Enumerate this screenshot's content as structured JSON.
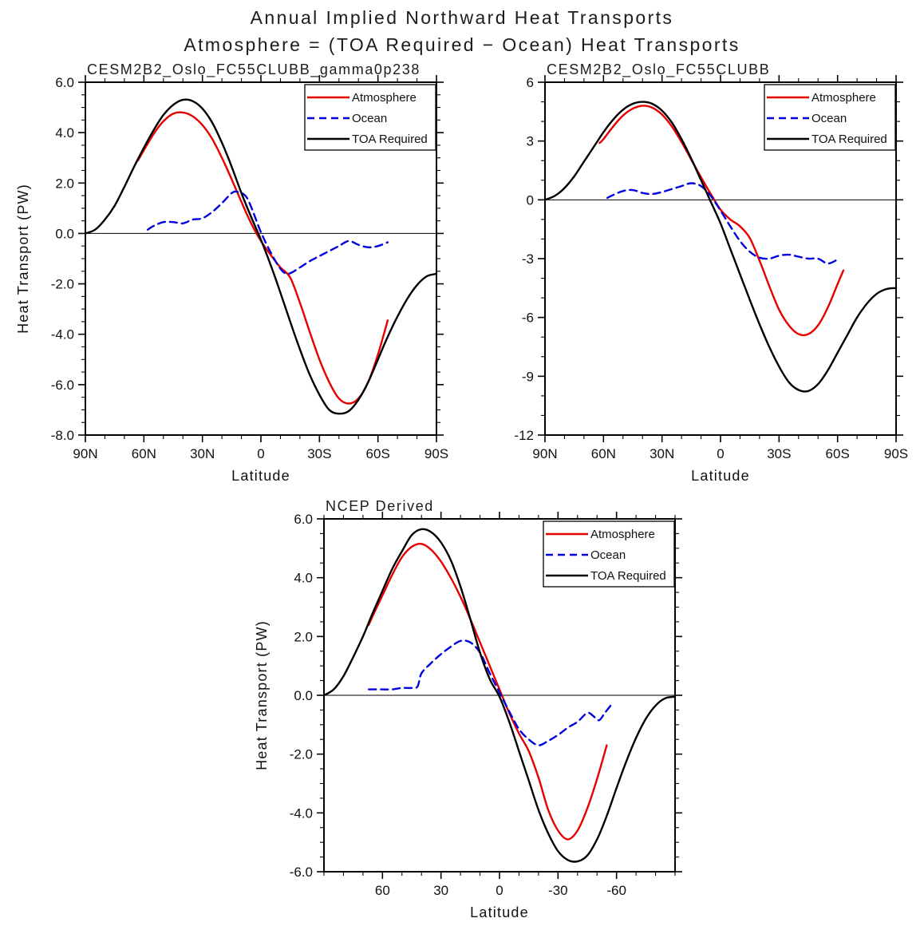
{
  "figure": {
    "title_line1": "Annual Implied Northward Heat Transports",
    "title_line2": "Atmosphere = (TOA Required − Ocean) Heat Transports"
  },
  "colors": {
    "atmosphere": "#e60000",
    "ocean": "#0000dd",
    "toa_required": "#000000",
    "frame": "#000000",
    "text": "#111111"
  },
  "chart_data": [
    {
      "id": "cesm-gamma0p238",
      "type": "line",
      "title": "CESM2B2_Oslo_FC55CLUBB_gamma0p238",
      "xlabel": "Latitude",
      "ylabel": "Heat Transport (PW)",
      "xlim": [
        90,
        -90
      ],
      "ylim": [
        -8,
        6
      ],
      "grid": false,
      "zero_line": true,
      "xticks": {
        "values": [
          90,
          60,
          30,
          0,
          -30,
          -60,
          -90
        ],
        "labels": [
          "90N",
          "60N",
          "30N",
          "0",
          "30S",
          "60S",
          "90S"
        ],
        "minor_step": 10
      },
      "yticks": {
        "values": [
          6,
          4,
          2,
          0,
          -2,
          -4,
          -6,
          -8
        ],
        "labels": [
          "6.0",
          "4.0",
          "2.0",
          "0.0",
          "-2.0",
          "-4.0",
          "-6.0",
          "-8.0"
        ],
        "minor_step": 0.5
      },
      "legend": {
        "position": "top-right",
        "entries": [
          "Atmosphere",
          "Ocean",
          "TOA Required"
        ]
      },
      "series": [
        {
          "name": "Atmosphere",
          "color_key": "atmosphere",
          "dash": "solid",
          "x": [
            63,
            60,
            55,
            50,
            45,
            40,
            35,
            30,
            25,
            20,
            15,
            10,
            5,
            0,
            -5,
            -10,
            -15,
            -20,
            -25,
            -30,
            -35,
            -40,
            -45,
            -50,
            -55,
            -60,
            -65
          ],
          "y": [
            2.9,
            3.3,
            3.95,
            4.45,
            4.75,
            4.8,
            4.65,
            4.3,
            3.75,
            3.0,
            2.15,
            1.25,
            0.4,
            -0.3,
            -0.85,
            -1.35,
            -1.75,
            -2.75,
            -3.9,
            -5.0,
            -5.9,
            -6.55,
            -6.75,
            -6.55,
            -5.9,
            -4.8,
            -3.45
          ]
        },
        {
          "name": "Ocean",
          "color_key": "ocean",
          "dash": "dashed",
          "x": [
            58,
            55,
            50,
            45,
            40,
            35,
            30,
            25,
            20,
            15,
            12,
            8,
            5,
            0,
            -5,
            -10,
            -14,
            -20,
            -25,
            -30,
            -35,
            -40,
            -45,
            -50,
            -55,
            -60,
            -65
          ],
          "y": [
            0.15,
            0.3,
            0.45,
            0.45,
            0.4,
            0.55,
            0.6,
            0.85,
            1.2,
            1.6,
            1.65,
            1.5,
            1.05,
            0.05,
            -0.75,
            -1.4,
            -1.6,
            -1.35,
            -1.1,
            -0.9,
            -0.7,
            -0.5,
            -0.3,
            -0.45,
            -0.55,
            -0.5,
            -0.35
          ]
        },
        {
          "name": "TOA Required",
          "color_key": "toa_required",
          "dash": "solid",
          "x": [
            90,
            85,
            80,
            75,
            70,
            65,
            60,
            55,
            50,
            45,
            40,
            35,
            30,
            25,
            20,
            15,
            10,
            5,
            0,
            -5,
            -10,
            -15,
            -20,
            -25,
            -30,
            -35,
            -40,
            -45,
            -50,
            -55,
            -60,
            -65,
            -70,
            -75,
            -80,
            -85,
            -90
          ],
          "y": [
            0.0,
            0.15,
            0.55,
            1.1,
            1.85,
            2.65,
            3.4,
            4.1,
            4.7,
            5.1,
            5.3,
            5.25,
            4.95,
            4.4,
            3.6,
            2.65,
            1.6,
            0.65,
            -0.25,
            -1.25,
            -2.35,
            -3.5,
            -4.6,
            -5.6,
            -6.4,
            -7.0,
            -7.15,
            -7.05,
            -6.6,
            -5.9,
            -5.0,
            -4.1,
            -3.3,
            -2.6,
            -2.05,
            -1.7,
            -1.6
          ]
        }
      ]
    },
    {
      "id": "cesm-fc55clubb",
      "type": "line",
      "title": "CESM2B2_Oslo_FC55CLUBB",
      "xlabel": "Latitude",
      "ylabel": "",
      "xlim": [
        90,
        -90
      ],
      "ylim": [
        -12,
        6
      ],
      "grid": false,
      "zero_line": true,
      "xticks": {
        "values": [
          90,
          60,
          30,
          0,
          -30,
          -60,
          -90
        ],
        "labels": [
          "90N",
          "60N",
          "30N",
          "0",
          "30S",
          "60S",
          "90S"
        ],
        "minor_step": 10
      },
      "yticks": {
        "values": [
          6,
          3,
          0,
          -3,
          -6,
          -9,
          -12
        ],
        "labels": [
          "6",
          "3",
          "0",
          "-3",
          "-6",
          "-9",
          "-12"
        ],
        "minor_step": 1
      },
      "legend": {
        "position": "top-right",
        "entries": [
          "Atmosphere",
          "Ocean",
          "TOA Required"
        ]
      },
      "series": [
        {
          "name": "Atmosphere",
          "color_key": "atmosphere",
          "dash": "solid",
          "x": [
            62,
            60,
            55,
            50,
            45,
            40,
            35,
            30,
            25,
            20,
            15,
            10,
            5,
            0,
            -5,
            -10,
            -15,
            -20,
            -25,
            -30,
            -35,
            -40,
            -45,
            -50,
            -55,
            -60,
            -63
          ],
          "y": [
            2.9,
            3.1,
            3.75,
            4.3,
            4.65,
            4.8,
            4.7,
            4.35,
            3.75,
            2.95,
            2.05,
            1.15,
            0.3,
            -0.5,
            -1.0,
            -1.35,
            -1.95,
            -3.1,
            -4.4,
            -5.6,
            -6.4,
            -6.85,
            -6.85,
            -6.4,
            -5.5,
            -4.3,
            -3.6
          ]
        },
        {
          "name": "Ocean",
          "color_key": "ocean",
          "dash": "dashed",
          "x": [
            58,
            55,
            50,
            45,
            40,
            35,
            30,
            25,
            20,
            15,
            10,
            5,
            0,
            -5,
            -10,
            -15,
            -20,
            -25,
            -30,
            -35,
            -40,
            -45,
            -50,
            -55,
            -60
          ],
          "y": [
            0.1,
            0.25,
            0.45,
            0.5,
            0.35,
            0.3,
            0.4,
            0.55,
            0.7,
            0.85,
            0.7,
            0.2,
            -0.55,
            -1.35,
            -2.1,
            -2.65,
            -2.95,
            -3.0,
            -2.85,
            -2.8,
            -2.9,
            -3.0,
            -3.0,
            -3.25,
            -3.05
          ]
        },
        {
          "name": "TOA Required",
          "color_key": "toa_required",
          "dash": "solid",
          "x": [
            90,
            85,
            80,
            75,
            70,
            65,
            60,
            55,
            50,
            45,
            40,
            35,
            30,
            25,
            20,
            15,
            10,
            5,
            0,
            -5,
            -10,
            -15,
            -20,
            -25,
            -30,
            -35,
            -40,
            -45,
            -50,
            -55,
            -60,
            -65,
            -70,
            -75,
            -80,
            -85,
            -90
          ],
          "y": [
            0.0,
            0.2,
            0.6,
            1.2,
            1.95,
            2.7,
            3.45,
            4.1,
            4.6,
            4.9,
            5.0,
            4.9,
            4.55,
            3.95,
            3.1,
            2.1,
            1.0,
            -0.1,
            -1.2,
            -2.5,
            -3.8,
            -5.1,
            -6.35,
            -7.5,
            -8.5,
            -9.3,
            -9.7,
            -9.75,
            -9.4,
            -8.7,
            -7.8,
            -6.9,
            -6.0,
            -5.3,
            -4.8,
            -4.55,
            -4.5
          ]
        }
      ]
    },
    {
      "id": "ncep-derived",
      "type": "line",
      "title": "NCEP Derived",
      "xlabel": "Latitude",
      "ylabel": "Heat Transport (PW)",
      "xlim": [
        90,
        -90
      ],
      "ylim": [
        -6,
        6
      ],
      "grid": false,
      "zero_line": true,
      "xticks": {
        "values": [
          60,
          30,
          0,
          -30,
          -60
        ],
        "labels": [
          "60",
          "30",
          "0",
          "-30",
          "-60"
        ],
        "minor_step": 10
      },
      "yticks": {
        "values": [
          6,
          4,
          2,
          0,
          -2,
          -4,
          -6
        ],
        "labels": [
          "6.0",
          "4.0",
          "2.0",
          "0.0",
          "-2.0",
          "-4.0",
          "-6.0"
        ],
        "minor_step": 0.5
      },
      "legend": {
        "position": "top-right",
        "entries": [
          "Atmosphere",
          "Ocean",
          "TOA Required"
        ]
      },
      "series": [
        {
          "name": "Atmosphere",
          "color_key": "atmosphere",
          "dash": "solid",
          "x": [
            67,
            65,
            60,
            55,
            50,
            45,
            40,
            35,
            30,
            25,
            20,
            15,
            10,
            5,
            0,
            -5,
            -10,
            -15,
            -20,
            -25,
            -30,
            -35,
            -40,
            -45,
            -50,
            -55
          ],
          "y": [
            2.4,
            2.7,
            3.4,
            4.1,
            4.7,
            5.05,
            5.15,
            4.95,
            4.55,
            4.0,
            3.35,
            2.6,
            1.8,
            1.0,
            0.2,
            -0.6,
            -1.3,
            -1.9,
            -2.8,
            -3.9,
            -4.6,
            -4.9,
            -4.6,
            -3.85,
            -2.85,
            -1.7
          ]
        },
        {
          "name": "Ocean",
          "color_key": "ocean",
          "dash": "dashed",
          "x": [
            67,
            60,
            55,
            50,
            45,
            42,
            40,
            35,
            30,
            25,
            20,
            15,
            10,
            5,
            0,
            -5,
            -10,
            -15,
            -20,
            -25,
            -30,
            -35,
            -40,
            -45,
            -48,
            -51,
            -54,
            -57
          ],
          "y": [
            0.2,
            0.2,
            0.2,
            0.25,
            0.25,
            0.3,
            0.75,
            1.1,
            1.4,
            1.65,
            1.85,
            1.8,
            1.45,
            0.75,
            0.1,
            -0.55,
            -1.15,
            -1.5,
            -1.7,
            -1.55,
            -1.35,
            -1.1,
            -0.9,
            -0.6,
            -0.7,
            -0.85,
            -0.6,
            -0.35
          ]
        },
        {
          "name": "TOA Required",
          "color_key": "toa_required",
          "dash": "solid",
          "x": [
            90,
            85,
            80,
            75,
            70,
            65,
            60,
            55,
            50,
            45,
            40,
            35,
            30,
            25,
            20,
            15,
            10,
            5,
            0,
            -5,
            -10,
            -15,
            -20,
            -25,
            -30,
            -35,
            -40,
            -45,
            -50,
            -55,
            -60,
            -65,
            -70,
            -75,
            -80,
            -85,
            -90
          ],
          "y": [
            0.0,
            0.2,
            0.65,
            1.3,
            2.0,
            2.8,
            3.55,
            4.3,
            4.9,
            5.45,
            5.65,
            5.55,
            5.2,
            4.6,
            3.7,
            2.6,
            1.45,
            0.55,
            -0.05,
            -0.9,
            -1.9,
            -2.9,
            -3.9,
            -4.7,
            -5.3,
            -5.6,
            -5.65,
            -5.45,
            -4.9,
            -4.1,
            -3.15,
            -2.25,
            -1.45,
            -0.8,
            -0.35,
            -0.1,
            -0.05
          ]
        }
      ]
    }
  ]
}
